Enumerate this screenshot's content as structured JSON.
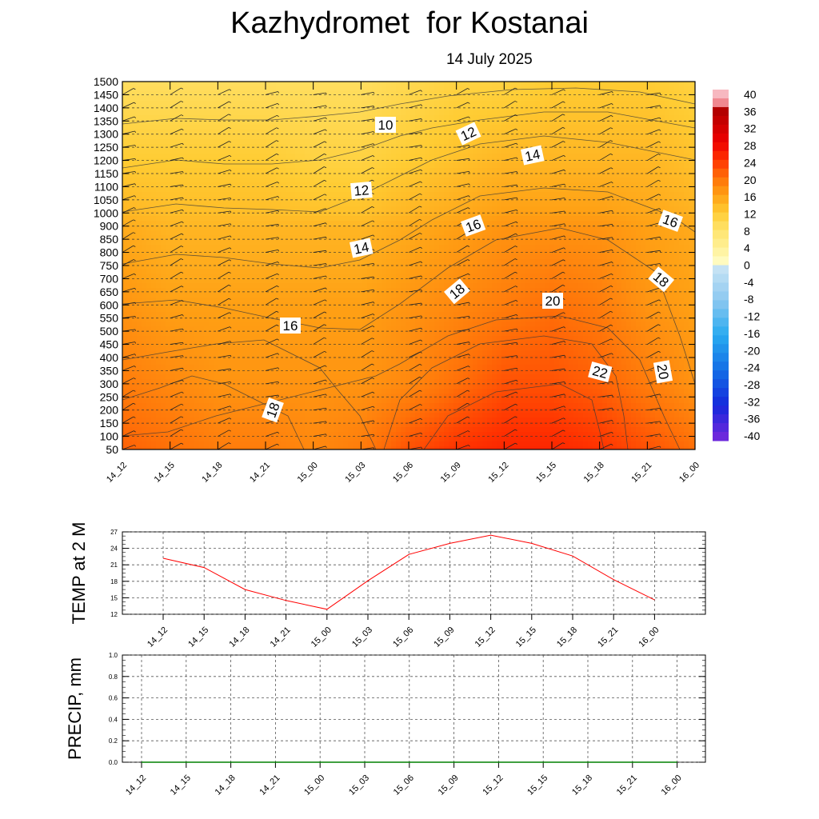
{
  "header": {
    "title": "Kazhydromet  for Kostanai",
    "subtitle": "14 July 2025"
  },
  "chart_data": [
    {
      "type": "heatmap",
      "ylim": [
        50,
        1500
      ],
      "y_ticks": [
        50,
        100,
        150,
        200,
        250,
        300,
        350,
        400,
        450,
        500,
        550,
        600,
        650,
        700,
        750,
        800,
        850,
        900,
        1000,
        1050,
        1100,
        1150,
        1200,
        1250,
        1300,
        1350,
        1400,
        1450,
        1500
      ],
      "x_ticks": [
        "14_12",
        "14_15",
        "14_18",
        "14_21",
        "15_00",
        "15_03",
        "15_06",
        "15_09",
        "15_12",
        "15_15",
        "15_18",
        "15_21",
        "16_00"
      ],
      "colorbar_labels": [
        "40",
        "36",
        "32",
        "28",
        "24",
        "20",
        "16",
        "12",
        "8",
        "4",
        "0",
        "-4",
        "-8",
        "-12",
        "-16",
        "-20",
        "-24",
        "-28",
        "-32",
        "-36",
        "-40"
      ],
      "contour_labels": [
        "10",
        "12",
        "12",
        "14",
        "14",
        "16",
        "16",
        "16",
        "18",
        "18",
        "18",
        "20",
        "20",
        "22"
      ],
      "field": {
        "columns": [
          "14_12",
          "14_15",
          "14_18",
          "14_21",
          "15_00",
          "15_03",
          "15_06",
          "15_09",
          "15_12",
          "15_15",
          "15_18",
          "15_21",
          "16_00"
        ],
        "levels": [
          50,
          300,
          600,
          900,
          1200,
          1500
        ],
        "values": [
          [
            21,
            20,
            19,
            19,
            18,
            19,
            22,
            24,
            25,
            25,
            24,
            22,
            20
          ],
          [
            19,
            18,
            17,
            17,
            17,
            17,
            18,
            20,
            22,
            22,
            21,
            19,
            17
          ],
          [
            17,
            16,
            16,
            16,
            16,
            16,
            17,
            18,
            19,
            20,
            19,
            17,
            16
          ],
          [
            15,
            14,
            14,
            14,
            14,
            14,
            15,
            16,
            17,
            17,
            17,
            16,
            15
          ],
          [
            12,
            12,
            12,
            12,
            11,
            11,
            12,
            13,
            14,
            14,
            14,
            14,
            13
          ],
          [
            9,
            9,
            9,
            9,
            9,
            9,
            10,
            11,
            11,
            12,
            12,
            12,
            11
          ]
        ]
      }
    },
    {
      "type": "line",
      "ylabel": "TEMP at 2 M",
      "ylim": [
        12,
        27
      ],
      "y_ticks": [
        "12",
        "15",
        "18",
        "21",
        "24",
        "27"
      ],
      "x": [
        "14_12",
        "14_15",
        "14_18",
        "14_21",
        "15_00",
        "15_03",
        "15_06",
        "15_09",
        "15_12",
        "15_15",
        "15_18",
        "15_21",
        "16_00"
      ],
      "values": [
        22.2,
        20.5,
        16.5,
        14.5,
        12.9,
        18.1,
        22.9,
        24.9,
        26.4,
        24.9,
        22.6,
        18.3,
        14.6
      ],
      "line_color": "#ff0000"
    },
    {
      "type": "line",
      "ylabel": "PRECIP, mm",
      "ylim": [
        0,
        1
      ],
      "y_ticks": [
        "0.0",
        "0.2",
        "0.4",
        "0.6",
        "0.8",
        "1.0"
      ],
      "x": [
        "14_12",
        "14_15",
        "14_18",
        "14_21",
        "15_00",
        "15_03",
        "15_06",
        "15_09",
        "15_12",
        "15_15",
        "15_18",
        "15_21",
        "16_00"
      ],
      "values": [
        0,
        0,
        0,
        0,
        0,
        0,
        0,
        0,
        0,
        0,
        0,
        0,
        0
      ],
      "line_color": "#008000"
    }
  ]
}
